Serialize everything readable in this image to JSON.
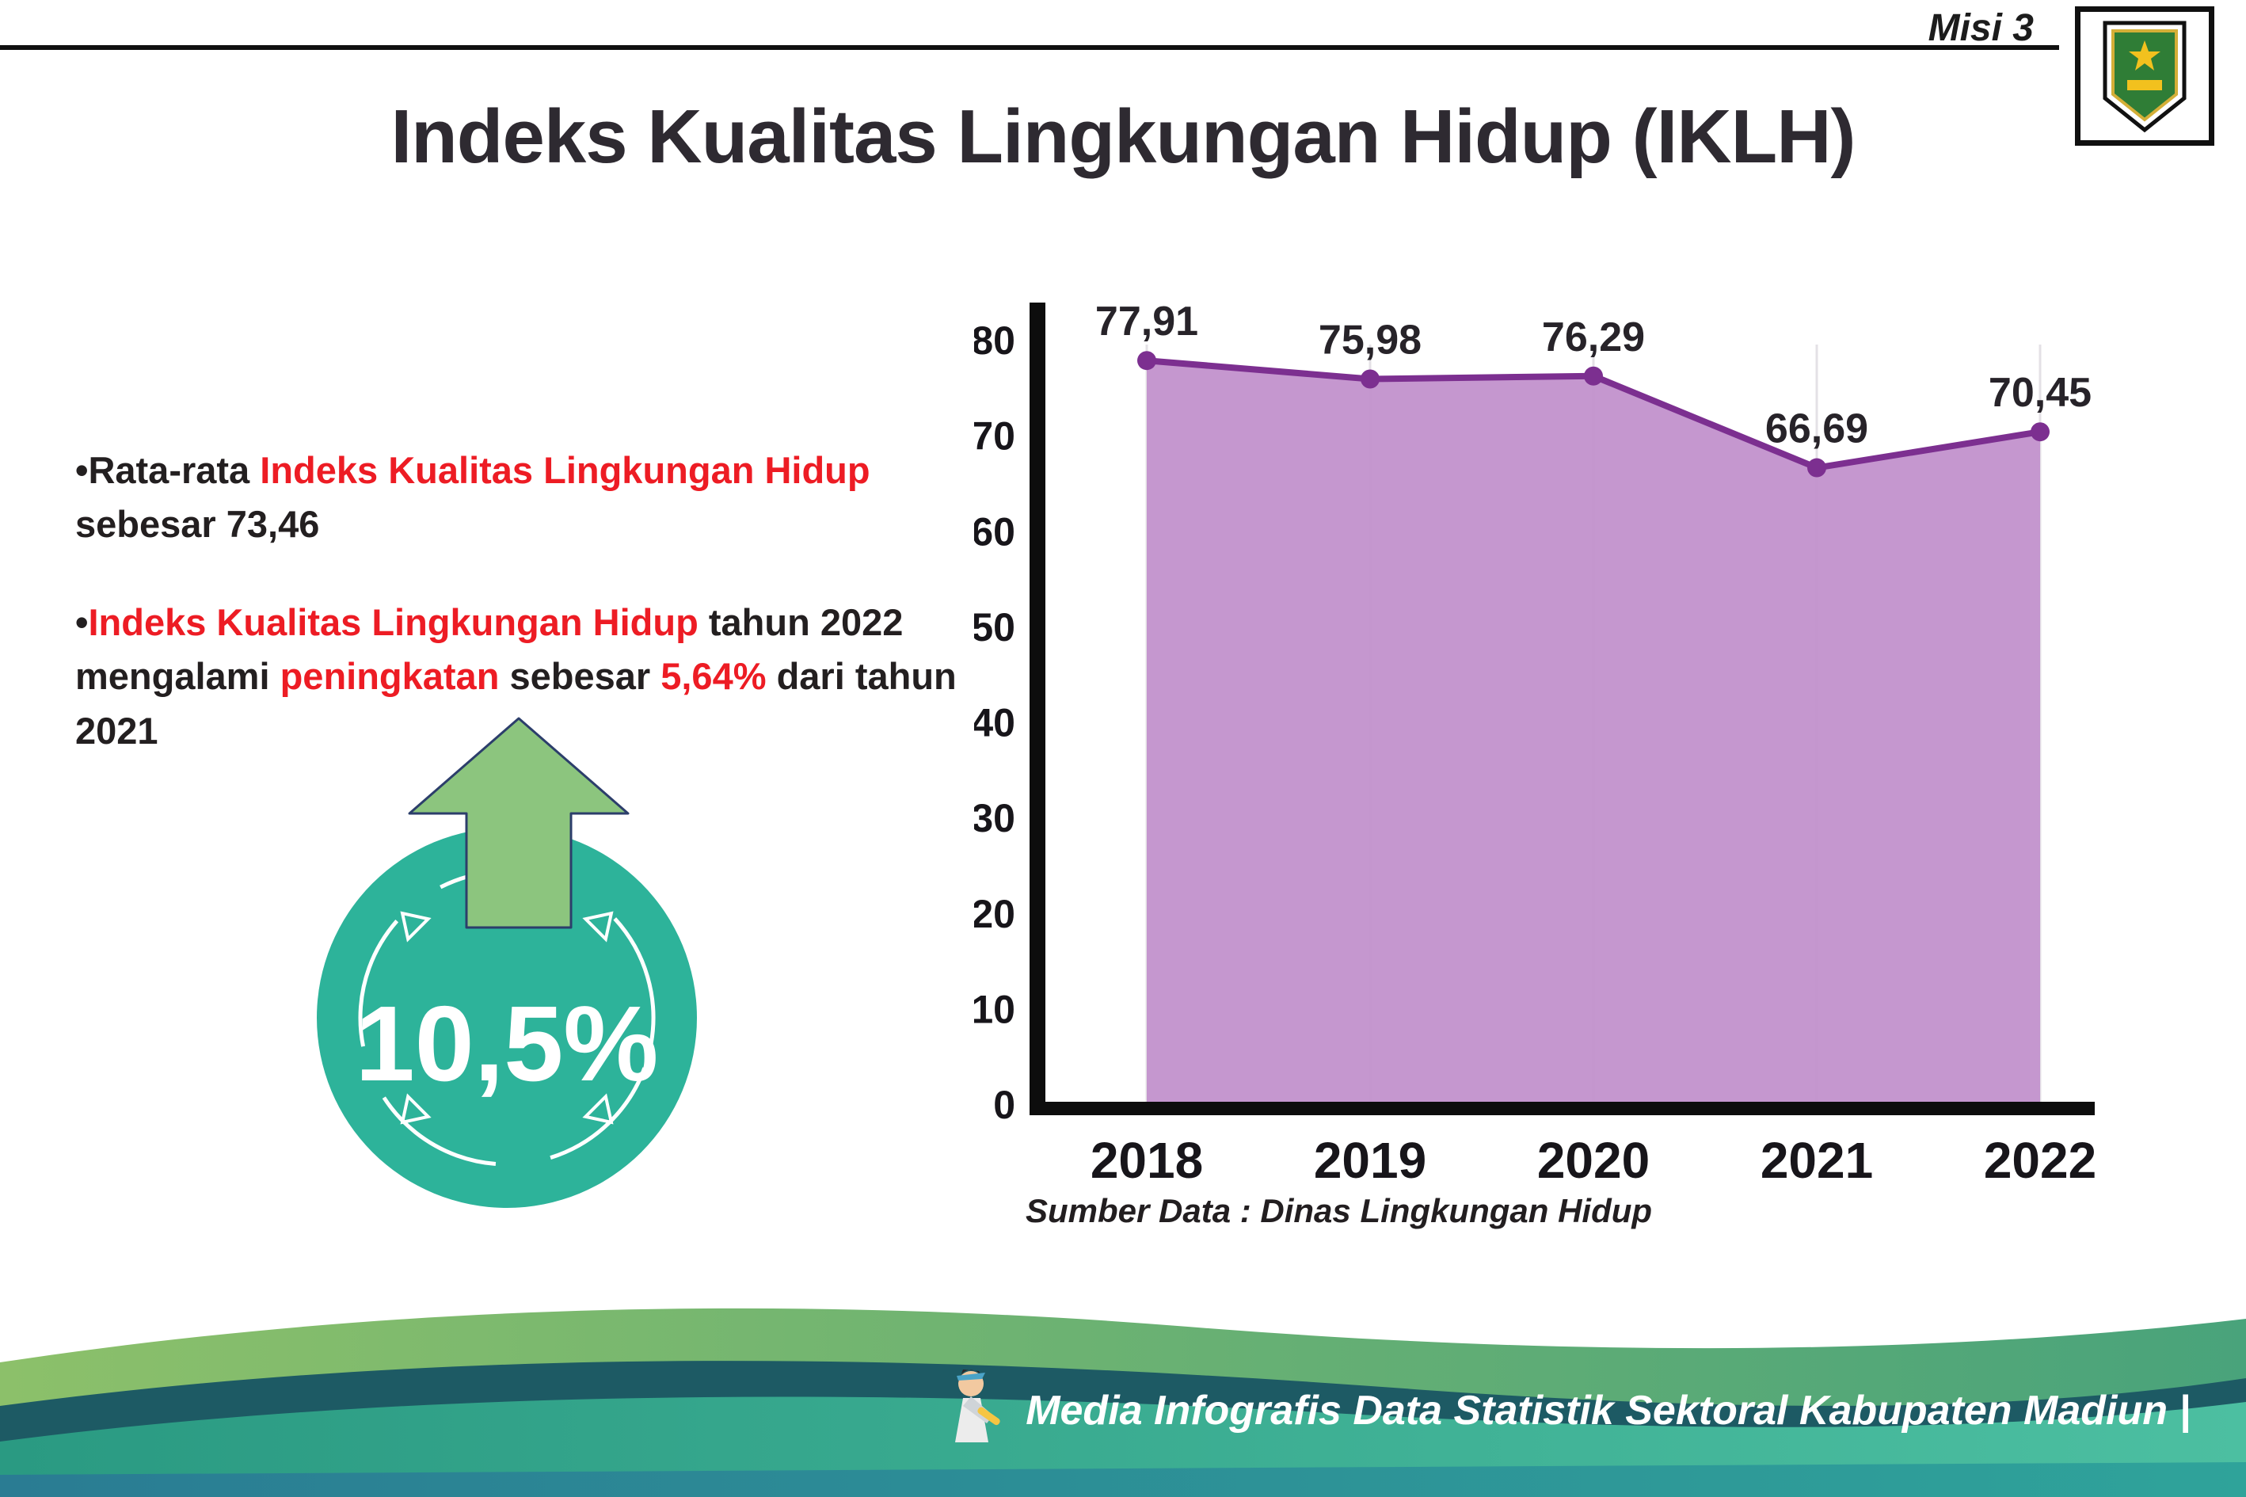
{
  "header": {
    "misi_label": "Misi 3",
    "title": "Indeks Kualitas Lingkungan Hidup (IKLH)"
  },
  "bullets": {
    "b1": {
      "s1": "•Rata-rata ",
      "s2": "Indeks Kualitas Lingkungan Hidup",
      "s3": " sebesar 73,46"
    },
    "b2": {
      "s1": "•",
      "s2": "Indeks Kualitas Lingkungan Hidup",
      "s3": " tahun 2022 mengalami ",
      "s4": "peningkatan",
      "s5": " sebesar ",
      "s6": "5,64%",
      "s7": " dari tahun 2021"
    }
  },
  "badge": {
    "value": "10,5%"
  },
  "chart_data": {
    "type": "area",
    "categories": [
      "2018",
      "2019",
      "2020",
      "2021",
      "2022"
    ],
    "values": [
      77.91,
      75.98,
      76.29,
      66.69,
      70.45
    ],
    "point_labels": [
      "77,91",
      "75,98",
      "76,29",
      "66,69",
      "70,45"
    ],
    "ylim": [
      0,
      80
    ],
    "yticks": [
      0,
      10,
      20,
      30,
      40,
      50,
      60,
      70,
      80
    ],
    "grid": "vertical-light",
    "legend": "none",
    "line_color": "#7c2f90",
    "fill_color": "#c291cc",
    "source_note": "Sumber Data : Dinas Lingkungan Hidup"
  },
  "footer": {
    "credit": "Media Infografis Data Statistik Sektoral Kabupaten Madiun |"
  },
  "colors": {
    "accent_red": "#ed1c24",
    "badge_teal": "#2db39a",
    "arrow_green": "#8cc57e",
    "line_purple": "#7c2f90",
    "area_purple": "#c291cc",
    "footer_teal": "#2a9a82",
    "footer_green": "#6fb06a",
    "footer_dark": "#1d5a64"
  }
}
